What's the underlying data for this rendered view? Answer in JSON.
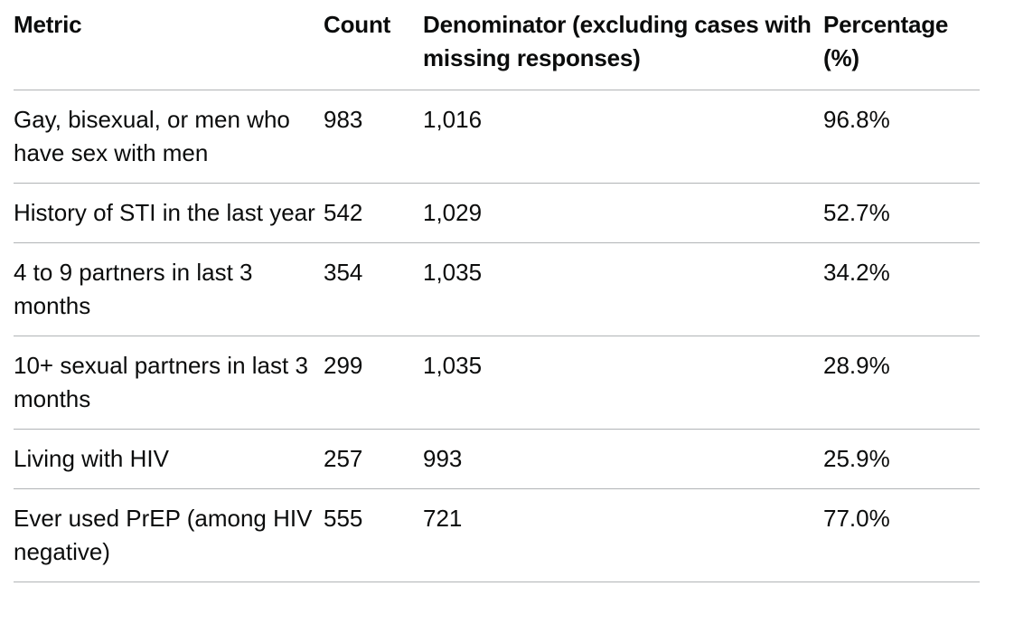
{
  "table": {
    "headers": [
      "Metric",
      "Count",
      "Denominator (excluding cases with missing responses)",
      "Percentage (%)"
    ],
    "rows": [
      [
        "Gay, bisexual, or men who have sex with men",
        "983",
        "1,016",
        "96.8%"
      ],
      [
        "History of STI in the last year",
        "542",
        "1,029",
        "52.7%"
      ],
      [
        "4 to 9 partners in last 3 months",
        "354",
        "1,035",
        "34.2%"
      ],
      [
        "10+ sexual partners in last 3 months",
        "299",
        "1,035",
        "28.9%"
      ],
      [
        "Living with HIV",
        "257",
        "993",
        "25.9%"
      ],
      [
        "Ever used PrEP (among HIV negative)",
        "555",
        "721",
        "77.0%"
      ]
    ]
  }
}
